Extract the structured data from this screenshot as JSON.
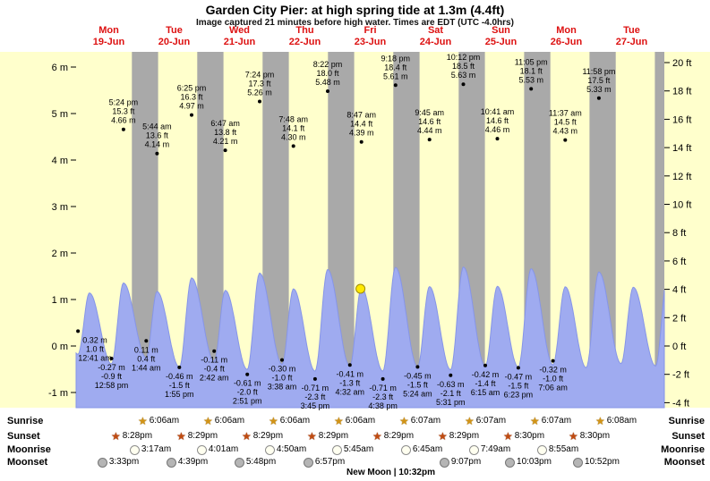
{
  "header": {
    "title": "Garden City Pier: at high spring tide at 1.3m (4.4ft)",
    "subtitle": "Image captured 21 minutes before high water. Times are EDT (UTC -4.0hrs)"
  },
  "chart_data": {
    "type": "area",
    "title": "Garden City Pier: at high spring tide at 1.3m (4.4ft)",
    "x_axis": {
      "days": [
        {
          "dow": "Mon",
          "date": "19-Jun"
        },
        {
          "dow": "Tue",
          "date": "20-Jun"
        },
        {
          "dow": "Wed",
          "date": "21-Jun"
        },
        {
          "dow": "Thu",
          "date": "22-Jun"
        },
        {
          "dow": "Fri",
          "date": "23-Jun"
        },
        {
          "dow": "Sat",
          "date": "24-Jun"
        },
        {
          "dow": "Sun",
          "date": "25-Jun"
        },
        {
          "dow": "Mon",
          "date": "26-Jun"
        },
        {
          "dow": "Tue",
          "date": "27-Jun"
        }
      ]
    },
    "y_axis_left": {
      "unit": "m",
      "ticks": [
        {
          "label": "6 m",
          "value": 6
        },
        {
          "label": "5 m",
          "value": 5
        },
        {
          "label": "4 m",
          "value": 4
        },
        {
          "label": "3 m",
          "value": 3
        },
        {
          "label": "2 m",
          "value": 2
        },
        {
          "label": "1 m",
          "value": 1
        },
        {
          "label": "0 m",
          "value": 0
        },
        {
          "label": "-1 m",
          "value": -1
        }
      ]
    },
    "y_axis_right": {
      "unit": "ft",
      "ticks": [
        {
          "label": "20 ft",
          "value": 20
        },
        {
          "label": "18 ft",
          "value": 18
        },
        {
          "label": "16 ft",
          "value": 16
        },
        {
          "label": "14 ft",
          "value": 14
        },
        {
          "label": "12 ft",
          "value": 12
        },
        {
          "label": "10 ft",
          "value": 10
        },
        {
          "label": "8 ft",
          "value": 8
        },
        {
          "label": "6 ft",
          "value": 6
        },
        {
          "label": "4 ft",
          "value": 4
        },
        {
          "label": "2 ft",
          "value": 2
        },
        {
          "label": "0 ft",
          "value": 0
        },
        {
          "label": "-2 ft",
          "value": -2
        },
        {
          "label": "-4 ft",
          "value": -4
        }
      ]
    },
    "nights": [
      [
        20.47,
        30.1
      ],
      [
        44.48,
        54.1
      ],
      [
        68.48,
        78.1
      ],
      [
        92.48,
        102.1
      ],
      [
        116.48,
        126.12
      ],
      [
        140.48,
        150.12
      ],
      [
        164.5,
        174.12
      ],
      [
        188.5,
        198.13
      ],
      [
        212.52,
        216.0
      ]
    ],
    "tide_events": [
      {
        "t_hours": -7.43,
        "height_m": 4.5,
        "type": "high",
        "label_lines": null
      },
      {
        "t_hours": 0.68,
        "height_m": 0.32,
        "type": "low",
        "label_lines": [
          "0.32 m",
          "1.0 ft",
          "12:41 am"
        ]
      },
      {
        "t_hours": 4.9,
        "height_m": 4.05,
        "type": "high",
        "label_lines": null
      },
      {
        "t_hours": 12.97,
        "height_m": -0.27,
        "type": "low",
        "label_lines": [
          "-0.27 m",
          "-0.9 ft",
          "12:58 pm"
        ]
      },
      {
        "t_hours": 17.4,
        "height_m": 4.66,
        "type": "high",
        "label_lines": [
          "5:24 pm",
          "15.3 ft",
          "4.66 m"
        ]
      },
      {
        "t_hours": 25.73,
        "height_m": 0.11,
        "type": "low",
        "label_lines": [
          "0.11 m",
          "0.4 ft",
          "1:44 am"
        ]
      },
      {
        "t_hours": 29.73,
        "height_m": 4.14,
        "type": "high",
        "label_lines": [
          "5:44 am",
          "13.6 ft",
          "4.14 m"
        ]
      },
      {
        "t_hours": 37.92,
        "height_m": -0.46,
        "type": "low",
        "label_lines": [
          "-0.46 m",
          "-1.5 ft",
          "1:55 pm"
        ]
      },
      {
        "t_hours": 42.42,
        "height_m": 4.97,
        "type": "high",
        "label_lines": [
          "6:25 pm",
          "16.3 ft",
          "4.97 m"
        ]
      },
      {
        "t_hours": 50.7,
        "height_m": -0.11,
        "type": "low",
        "label_lines": [
          "-0.11 m",
          "-0.4 ft",
          "2:42 am"
        ]
      },
      {
        "t_hours": 54.78,
        "height_m": 4.21,
        "type": "high",
        "label_lines": [
          "6:47 am",
          "13.8 ft",
          "4.21 m"
        ]
      },
      {
        "t_hours": 62.85,
        "height_m": -0.61,
        "type": "low",
        "label_lines": [
          "-0.61 m",
          "-2.0 ft",
          "2:51 pm"
        ]
      },
      {
        "t_hours": 67.4,
        "height_m": 5.26,
        "type": "high",
        "label_lines": [
          "7:24 pm",
          "17.3 ft",
          "5.26 m"
        ]
      },
      {
        "t_hours": 75.63,
        "height_m": -0.3,
        "type": "low",
        "label_lines": [
          "-0.30 m",
          "-1.0 ft",
          "3:38 am"
        ]
      },
      {
        "t_hours": 79.8,
        "height_m": 4.3,
        "type": "high",
        "label_lines": [
          "7:48 am",
          "14.1 ft",
          "4.30 m"
        ]
      },
      {
        "t_hours": 87.75,
        "height_m": -0.71,
        "type": "low",
        "label_lines": [
          "-0.71 m",
          "-2.3 ft",
          "3:45 pm"
        ]
      },
      {
        "t_hours": 92.37,
        "height_m": 5.48,
        "type": "high",
        "label_lines": [
          "8:22 pm",
          "18.0 ft",
          "5.48 m"
        ]
      },
      {
        "t_hours": 100.53,
        "height_m": -0.41,
        "type": "low",
        "label_lines": [
          "-0.41 m",
          "-1.3 ft",
          "4:32 am"
        ]
      },
      {
        "t_hours": 104.78,
        "height_m": 4.39,
        "type": "high",
        "label_lines": [
          "8:47 am",
          "14.4 ft",
          "4.39 m"
        ]
      },
      {
        "t_hours": 112.63,
        "height_m": -0.71,
        "type": "low",
        "label_lines": [
          "-0.71 m",
          "-2.3 ft",
          "4:38 pm"
        ]
      },
      {
        "t_hours": 117.3,
        "height_m": 5.61,
        "type": "high",
        "label_lines": [
          "9:18 pm",
          "18.4 ft",
          "5.61 m"
        ]
      },
      {
        "t_hours": 125.4,
        "height_m": -0.45,
        "type": "low",
        "label_lines": [
          "-0.45 m",
          "-1.5 ft",
          "5:24 am"
        ]
      },
      {
        "t_hours": 129.75,
        "height_m": 4.44,
        "type": "high",
        "label_lines": [
          "9:45 am",
          "14.6 ft",
          "4.44 m"
        ]
      },
      {
        "t_hours": 137.52,
        "height_m": -0.63,
        "type": "low",
        "label_lines": [
          "-0.63 m",
          "-2.1 ft",
          "5:31 pm"
        ]
      },
      {
        "t_hours": 142.2,
        "height_m": 5.63,
        "type": "high",
        "label_lines": [
          "10:12 pm",
          "18.5 ft",
          "5.63 m"
        ]
      },
      {
        "t_hours": 150.25,
        "height_m": -0.42,
        "type": "low",
        "label_lines": [
          "-0.42 m",
          "-1.4 ft",
          "6:15 am"
        ]
      },
      {
        "t_hours": 154.68,
        "height_m": 4.46,
        "type": "high",
        "label_lines": [
          "10:41 am",
          "14.6 ft",
          "4.46 m"
        ]
      },
      {
        "t_hours": 162.38,
        "height_m": -0.47,
        "type": "low",
        "label_lines": [
          "-0.47 m",
          "-1.5 ft",
          "6:23 pm"
        ]
      },
      {
        "t_hours": 167.08,
        "height_m": 5.53,
        "type": "high",
        "label_lines": [
          "11:05 pm",
          "18.1 ft",
          "5.53 m"
        ]
      },
      {
        "t_hours": 175.1,
        "height_m": -0.32,
        "type": "low",
        "label_lines": [
          "-0.32 m",
          "-1.0 ft",
          "7:06 am"
        ]
      },
      {
        "t_hours": 179.62,
        "height_m": 4.43,
        "type": "high",
        "label_lines": [
          "11:37 am",
          "14.5 ft",
          "4.43 m"
        ]
      },
      {
        "t_hours": 187.3,
        "height_m": -0.5,
        "type": "low",
        "label_lines": null
      },
      {
        "t_hours": 191.97,
        "height_m": 5.33,
        "type": "high",
        "label_lines": [
          "11:58 pm",
          "17.5 ft",
          "5.33 m"
        ]
      },
      {
        "t_hours": 200.1,
        "height_m": -0.25,
        "type": "low",
        "label_lines": null
      },
      {
        "t_hours": 204.6,
        "height_m": 4.4,
        "type": "high",
        "label_lines": null
      },
      {
        "t_hours": 212.8,
        "height_m": -0.4,
        "type": "low",
        "label_lines": null
      },
      {
        "t_hours": 217.2,
        "height_m": 5.2,
        "type": "high",
        "label_lines": null
      }
    ],
    "current_marker": {
      "t_hours": 104.43,
      "height_label": "1.3m (4.4ft)"
    },
    "colors": {
      "day_band": "#ffffcc",
      "night_band": "#a9a9a9",
      "tide_fill": "#9fabf0",
      "tide_stroke": "#8695e8",
      "day_label": "#dd1111",
      "marker": "#ffe800"
    }
  },
  "astro": {
    "rows": [
      {
        "name": "Sunrise",
        "icon": "sunrise",
        "events": [
          {
            "day": 1,
            "time": "6:06am"
          },
          {
            "day": 2,
            "time": "6:06am"
          },
          {
            "day": 3,
            "time": "6:06am"
          },
          {
            "day": 4,
            "time": "6:06am"
          },
          {
            "day": 5,
            "time": "6:07am"
          },
          {
            "day": 6,
            "time": "6:07am"
          },
          {
            "day": 7,
            "time": "6:07am"
          },
          {
            "day": 8,
            "time": "6:08am"
          }
        ]
      },
      {
        "name": "Sunset",
        "icon": "sunset",
        "events": [
          {
            "day": 0,
            "time": "8:28pm"
          },
          {
            "day": 1,
            "time": "8:29pm"
          },
          {
            "day": 2,
            "time": "8:29pm"
          },
          {
            "day": 3,
            "time": "8:29pm"
          },
          {
            "day": 4,
            "time": "8:29pm"
          },
          {
            "day": 5,
            "time": "8:29pm"
          },
          {
            "day": 6,
            "time": "8:30pm"
          },
          {
            "day": 7,
            "time": "8:30pm"
          }
        ]
      },
      {
        "name": "Moonrise",
        "icon": "moonrise",
        "events": [
          {
            "day": 1,
            "time": "3:17am"
          },
          {
            "day": 2,
            "time": "4:01am"
          },
          {
            "day": 3,
            "time": "4:50am"
          },
          {
            "day": 4,
            "time": "5:45am"
          },
          {
            "day": 5,
            "time": "6:45am"
          },
          {
            "day": 6,
            "time": "7:49am"
          },
          {
            "day": 7,
            "time": "8:55am"
          }
        ]
      },
      {
        "name": "Moonset",
        "icon": "moonset",
        "events": [
          {
            "day": 0,
            "time": "3:33pm"
          },
          {
            "day": 1,
            "time": "4:39pm"
          },
          {
            "day": 2,
            "time": "5:48pm"
          },
          {
            "day": 3,
            "time": "6:57pm"
          },
          {
            "day": 5,
            "time": "9:07pm"
          },
          {
            "day": 6,
            "time": "10:03pm"
          },
          {
            "day": 7,
            "time": "10:52pm"
          }
        ]
      }
    ],
    "new_moon": "New Moon | 10:32pm"
  }
}
